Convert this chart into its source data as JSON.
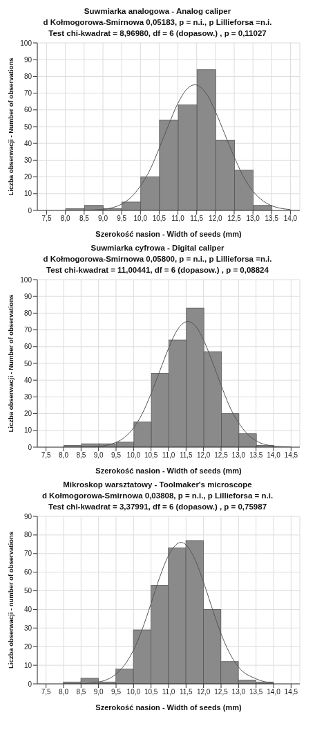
{
  "chart_data": [
    {
      "type": "histogram",
      "title": "Suwmiarka analogowa - Analog caliper",
      "subtitle": "d Kołmogorowa-Smirnowa 0,05183, p = n.i., p Lillieforsa =n.i.\nTest chi-kwadrat = 8,96980, df = 6 (dopasow.) , p = 0,11027",
      "xlabel": "Szerokość nasion - Width of seeds (mm)",
      "ylabel": "Liczba obserwacji - Number of observations",
      "color": "#8a8a8a",
      "grid": true,
      "bins": [
        8.0,
        8.5,
        9.0,
        9.5,
        10.0,
        10.5,
        11.0,
        11.5,
        12.0,
        12.5,
        13.0,
        13.5
      ],
      "values": [
        1,
        3,
        1,
        5,
        20,
        54,
        63,
        84,
        42,
        24,
        3
      ],
      "series": [
        {
          "type": "line",
          "color": "#555555",
          "x": [
            8.5,
            9.0,
            9.5,
            9.75,
            10.0,
            10.25,
            10.5,
            10.75,
            11.0,
            11.25,
            11.45,
            11.75,
            12.0,
            12.25,
            12.5,
            12.75,
            13.0,
            13.25,
            13.5,
            14.0
          ],
          "values": [
            0.1,
            0.7,
            3.8,
            7.9,
            14.6,
            24,
            37,
            51,
            64,
            72.7,
            75,
            70,
            59,
            45.5,
            32,
            20,
            11.5,
            6,
            2.8,
            0.5
          ]
        }
      ],
      "xlim": [
        7.25,
        14.25
      ],
      "xticks": [
        {
          "value": 7.5,
          "label": "7,5"
        },
        {
          "value": 8,
          "label": "8,0"
        },
        {
          "value": 8.5,
          "label": "8,5"
        },
        {
          "value": 9,
          "label": "9,0"
        },
        {
          "value": 9.5,
          "label": "9,5"
        },
        {
          "value": 10,
          "label": "10,0"
        },
        {
          "value": 10.5,
          "label": "10,5"
        },
        {
          "value": 11,
          "label": "11,0"
        },
        {
          "value": 11.5,
          "label": "11,5"
        },
        {
          "value": 12,
          "label": "12,0"
        },
        {
          "value": 12.5,
          "label": "12,5"
        },
        {
          "value": 13,
          "label": "13,0"
        },
        {
          "value": 13.5,
          "label": "13,5"
        },
        {
          "value": 14,
          "label": "14,0"
        }
      ],
      "ylim": [
        0,
        100
      ],
      "yticks": [
        0,
        10,
        20,
        30,
        40,
        50,
        60,
        70,
        80,
        90,
        100
      ]
    },
    {
      "type": "histogram",
      "title": "Suwmiarka cyfrowa - Digital caliper",
      "subtitle": "d Kołmogorowa-Smirnowa 0,05800, p = n.i., p Lillieforsa =n.i.\nTest chi-kwadrat = 11,00441, df = 6 (dopasow.) , p = 0,08824",
      "xlabel": "Szerokość nasion - Width of seeds (mm)",
      "ylabel": "Liczba obserwacji - Number of observations",
      "color": "#8a8a8a",
      "grid": true,
      "bins": [
        8.0,
        8.5,
        9.0,
        9.5,
        10.0,
        10.5,
        11.0,
        11.5,
        12.0,
        12.5,
        13.0,
        13.5,
        14.0
      ],
      "values": [
        1,
        2,
        2,
        3,
        15,
        44,
        64,
        83,
        57,
        20,
        8,
        1
      ],
      "series": [
        {
          "type": "line",
          "color": "#555555",
          "x": [
            8.5,
            9.0,
            9.5,
            9.75,
            10.0,
            10.25,
            10.5,
            10.75,
            11.0,
            11.25,
            11.55,
            11.75,
            12.0,
            12.25,
            12.5,
            12.75,
            13.0,
            13.5,
            14.0,
            14.5
          ],
          "values": [
            0.1,
            0.5,
            2.8,
            6,
            11.5,
            20,
            32,
            45.5,
            59,
            70,
            75,
            72.7,
            64,
            51,
            37,
            24,
            14.6,
            3.8,
            0.7,
            0.1
          ]
        }
      ],
      "xlim": [
        7.25,
        14.75
      ],
      "xticks": [
        {
          "value": 7.5,
          "label": "7,5"
        },
        {
          "value": 8,
          "label": "8,0"
        },
        {
          "value": 8.5,
          "label": "8,5"
        },
        {
          "value": 9,
          "label": "9,0"
        },
        {
          "value": 9.5,
          "label": "9,5"
        },
        {
          "value": 10,
          "label": "10,0"
        },
        {
          "value": 10.5,
          "label": "10,5"
        },
        {
          "value": 11,
          "label": "11,0"
        },
        {
          "value": 11.5,
          "label": "11,5"
        },
        {
          "value": 12,
          "label": "12,0"
        },
        {
          "value": 12.5,
          "label": "12,5"
        },
        {
          "value": 13,
          "label": "13,0"
        },
        {
          "value": 13.5,
          "label": "13,5"
        },
        {
          "value": 14,
          "label": "14,0"
        },
        {
          "value": 14.5,
          "label": "14,5"
        }
      ],
      "ylim": [
        0,
        100
      ],
      "yticks": [
        0,
        10,
        20,
        30,
        40,
        50,
        60,
        70,
        80,
        90,
        100
      ]
    },
    {
      "type": "histogram",
      "title": "Mikroskop warsztatowy - Toolmaker's microscope",
      "subtitle": "d Kołmogorowa-Smirnowa 0,03808, p = n.i., p Lillieforsa = n.i.\nTest chi-kwadrat = 3,37991, df = 6 (dopasow.) , p = 0,75987",
      "xlabel": "Szerokość nasion - Width of seeds (mm)",
      "ylabel": "Liczba obserwacji - number of observations",
      "color": "#8a8a8a",
      "grid": true,
      "bins": [
        8.0,
        8.5,
        9.0,
        9.5,
        10.0,
        10.5,
        11.0,
        11.5,
        12.0,
        12.5,
        13.0,
        13.5,
        14.0
      ],
      "values": [
        1,
        3,
        1,
        8,
        29,
        53,
        73,
        77,
        40,
        12,
        2,
        1
      ],
      "series": [
        {
          "type": "line",
          "color": "#555555",
          "x": [
            8.5,
            9.0,
            9.5,
            9.75,
            10.0,
            10.25,
            10.5,
            10.75,
            11.0,
            11.35,
            11.5,
            11.75,
            12.0,
            12.25,
            12.5,
            12.75,
            13.0,
            13.5,
            14.0
          ],
          "values": [
            0.1,
            1,
            5.3,
            10.3,
            18.2,
            29.4,
            43.2,
            57.4,
            69,
            76,
            74.7,
            67,
            54.6,
            40.4,
            26.9,
            16.3,
            9,
            2.7,
            0.3
          ]
        }
      ],
      "xlim": [
        7.25,
        14.75
      ],
      "xticks": [
        {
          "value": 7.5,
          "label": "7,5"
        },
        {
          "value": 8,
          "label": "8,0"
        },
        {
          "value": 8.5,
          "label": "8,5"
        },
        {
          "value": 9,
          "label": "9,0"
        },
        {
          "value": 9.5,
          "label": "9,5"
        },
        {
          "value": 10,
          "label": "10,0"
        },
        {
          "value": 10.5,
          "label": "10,5"
        },
        {
          "value": 11,
          "label": "11,0"
        },
        {
          "value": 11.5,
          "label": "11,5"
        },
        {
          "value": 12,
          "label": "12,0"
        },
        {
          "value": 12.5,
          "label": "12,5"
        },
        {
          "value": 13,
          "label": "13,0"
        },
        {
          "value": 13.5,
          "label": "13,5"
        },
        {
          "value": 14,
          "label": "14,0"
        },
        {
          "value": 14.5,
          "label": "14,5"
        }
      ],
      "ylim": [
        0,
        90
      ],
      "yticks": [
        0,
        10,
        20,
        30,
        40,
        50,
        60,
        70,
        80,
        90
      ]
    }
  ]
}
